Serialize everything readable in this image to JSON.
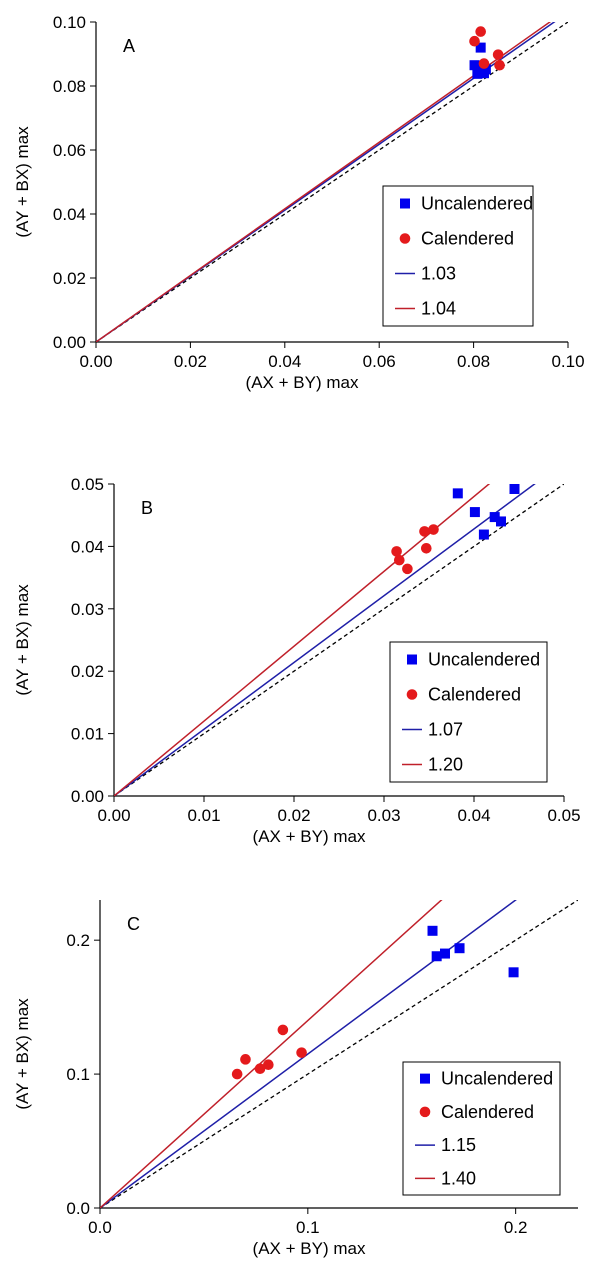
{
  "chart_data": [
    {
      "type": "scatter",
      "title": "",
      "panel_label": "A",
      "xlabel": "(AX + BY) max",
      "ylabel": "(AY + BX) max",
      "xlim": [
        0,
        0.1
      ],
      "ylim": [
        0,
        0.1
      ],
      "xticks": [
        "0.00",
        "0.02",
        "0.04",
        "0.06",
        "0.08",
        "0.10"
      ],
      "yticks": [
        "0.00",
        "0.02",
        "0.04",
        "0.06",
        "0.08",
        "0.10"
      ],
      "grid": false,
      "legend_position": "center-right",
      "series": [
        {
          "name": "Uncalendered",
          "kind": "points",
          "marker": "square",
          "color": "#0000ee",
          "x": [
            0.0802,
            0.0808,
            0.0815,
            0.0818,
            0.0822,
            0.0826,
            0.0812
          ],
          "y": [
            0.0865,
            0.0838,
            0.092,
            0.0848,
            0.084,
            0.0852,
            0.0855
          ]
        },
        {
          "name": "Calendered",
          "kind": "points",
          "marker": "circle",
          "color": "#e41a1c",
          "x": [
            0.0802,
            0.0815,
            0.0822,
            0.0852,
            0.0855
          ],
          "y": [
            0.094,
            0.097,
            0.087,
            0.0898,
            0.0865
          ]
        },
        {
          "name": "1.03",
          "kind": "line",
          "slope": 1.03,
          "color": "#1f1fa8"
        },
        {
          "name": "1.04",
          "kind": "line",
          "slope": 1.04,
          "color": "#c0202a"
        }
      ],
      "reference_line": {
        "slope": 1.0,
        "style": "dashed",
        "color": "#000000"
      }
    },
    {
      "type": "scatter",
      "title": "",
      "panel_label": "B",
      "xlabel": "(AX + BY) max",
      "ylabel": "(AY + BX) max",
      "xlim": [
        0,
        0.05
      ],
      "ylim": [
        0,
        0.05
      ],
      "xticks": [
        "0.00",
        "0.01",
        "0.02",
        "0.03",
        "0.04",
        "0.05"
      ],
      "yticks": [
        "0.00",
        "0.01",
        "0.02",
        "0.03",
        "0.04",
        "0.05"
      ],
      "grid": false,
      "legend_position": "center-right",
      "series": [
        {
          "name": "Uncalendered",
          "kind": "points",
          "marker": "square",
          "color": "#0000ee",
          "x": [
            0.0382,
            0.0401,
            0.0411,
            0.0423,
            0.043,
            0.0445
          ],
          "y": [
            0.0485,
            0.0455,
            0.0419,
            0.0447,
            0.044,
            0.0492
          ]
        },
        {
          "name": "Calendered",
          "kind": "points",
          "marker": "circle",
          "color": "#e41a1c",
          "x": [
            0.0314,
            0.0317,
            0.0326,
            0.0345,
            0.0347,
            0.0355
          ],
          "y": [
            0.0392,
            0.0378,
            0.0364,
            0.0424,
            0.0397,
            0.0427
          ]
        },
        {
          "name": "1.07",
          "kind": "line",
          "slope": 1.07,
          "color": "#1f1fa8"
        },
        {
          "name": "1.20",
          "kind": "line",
          "slope": 1.2,
          "color": "#c0202a"
        }
      ],
      "reference_line": {
        "slope": 1.0,
        "style": "dashed",
        "color": "#000000"
      }
    },
    {
      "type": "scatter",
      "title": "",
      "panel_label": "C",
      "xlabel": "(AX + BY) max",
      "ylabel": "(AY + BX) max",
      "xlim": [
        0,
        0.23
      ],
      "ylim": [
        0,
        0.23
      ],
      "xticks": [
        "0.0",
        "0.1",
        "0.2"
      ],
      "xtick_values": [
        0,
        0.1,
        0.2
      ],
      "yticks": [
        "0.0",
        "0.1",
        "0.2"
      ],
      "ytick_values": [
        0,
        0.1,
        0.2
      ],
      "grid": false,
      "legend_position": "center-right",
      "series": [
        {
          "name": "Uncalendered",
          "kind": "points",
          "marker": "square",
          "color": "#0000ee",
          "x": [
            0.16,
            0.162,
            0.166,
            0.173,
            0.199
          ],
          "y": [
            0.207,
            0.188,
            0.19,
            0.194,
            0.176
          ]
        },
        {
          "name": "Calendered",
          "kind": "points",
          "marker": "circle",
          "color": "#e41a1c",
          "x": [
            0.066,
            0.07,
            0.077,
            0.081,
            0.088,
            0.097
          ],
          "y": [
            0.1,
            0.111,
            0.104,
            0.107,
            0.133,
            0.116
          ]
        },
        {
          "name": "1.15",
          "kind": "line",
          "slope": 1.15,
          "color": "#1f1fa8"
        },
        {
          "name": "1.40",
          "kind": "line",
          "slope": 1.4,
          "color": "#c0202a"
        }
      ],
      "reference_line": {
        "slope": 1.0,
        "style": "dashed",
        "color": "#000000"
      }
    }
  ]
}
